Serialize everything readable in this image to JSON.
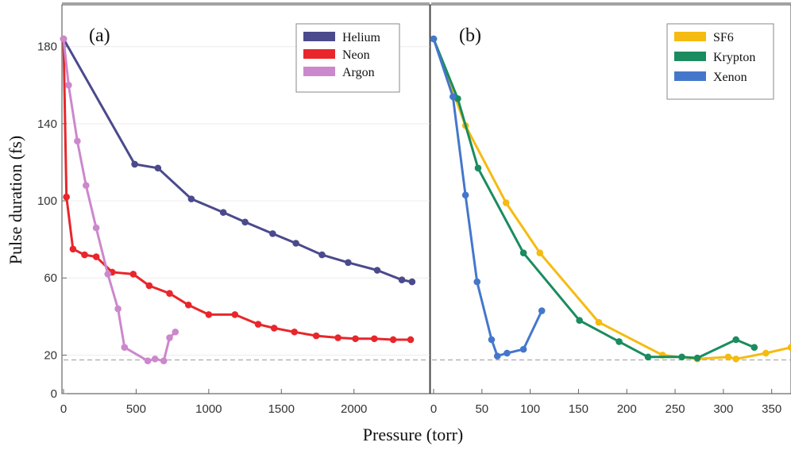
{
  "figure": {
    "ylabel": "Pulse duration (fs)",
    "xlabel": "Pressure (torr)",
    "reference_line_value": 17.5
  },
  "chart_data": [
    {
      "type": "line",
      "panel_label": "(a)",
      "xlim": [
        0,
        2450
      ],
      "ylim": [
        0,
        190
      ],
      "x_ticks": [
        0,
        500,
        1000,
        1500,
        2000
      ],
      "y_ticks": [
        0,
        20,
        60,
        100,
        140,
        180
      ],
      "legend_position": "top-right",
      "series": [
        {
          "name": "Helium",
          "color": "#4b4a8c",
          "x": [
            0,
            490,
            650,
            880,
            1100,
            1250,
            1440,
            1600,
            1780,
            1960,
            2160,
            2330,
            2400
          ],
          "y": [
            184,
            119,
            117,
            101,
            94,
            89,
            83,
            78,
            72,
            68,
            64,
            59,
            58
          ]
        },
        {
          "name": "Neon",
          "color": "#e8262b",
          "x": [
            0,
            20,
            65,
            145,
            225,
            335,
            480,
            590,
            730,
            860,
            1000,
            1180,
            1340,
            1450,
            1590,
            1740,
            1890,
            2010,
            2140,
            2270,
            2390
          ],
          "y": [
            184,
            102,
            75,
            72,
            71,
            63,
            62,
            56,
            52,
            46,
            41,
            41,
            36,
            34,
            32,
            30,
            29,
            28.5,
            28.5,
            28,
            28
          ]
        },
        {
          "name": "Argon",
          "color": "#cc88cc",
          "x": [
            0,
            35,
            95,
            155,
            225,
            305,
            375,
            420,
            580,
            630,
            690,
            730,
            770
          ],
          "y": [
            184,
            160,
            131,
            108,
            86,
            62,
            44,
            24,
            17,
            18,
            17,
            29,
            32
          ]
        }
      ]
    },
    {
      "type": "line",
      "panel_label": "(b)",
      "xlim": [
        0,
        370
      ],
      "ylim": [
        0,
        190
      ],
      "x_ticks": [
        0,
        50,
        100,
        150,
        200,
        250,
        300,
        350
      ],
      "y_ticks": [],
      "legend_position": "top-right",
      "series": [
        {
          "name": "SF6",
          "color": "#f5bb10",
          "x": [
            0,
            33,
            75,
            110,
            171,
            237,
            273,
            305,
            313,
            344,
            370
          ],
          "y": [
            184,
            139,
            99,
            73,
            37,
            20,
            18,
            19,
            18,
            21,
            24
          ]
        },
        {
          "name": "Krypton",
          "color": "#1a8c5f",
          "x": [
            0,
            25,
            46,
            93,
            151,
            192,
            222,
            257,
            273,
            313,
            332
          ],
          "y": [
            184,
            153,
            117,
            73,
            38,
            27,
            19,
            19,
            18.5,
            28,
            24
          ]
        },
        {
          "name": "Xenon",
          "color": "#4477cc",
          "x": [
            0,
            20,
            33,
            45,
            60,
            66,
            76,
            93,
            112
          ],
          "y": [
            184,
            154,
            103,
            58,
            28,
            19.5,
            21,
            23,
            43
          ]
        }
      ]
    }
  ]
}
